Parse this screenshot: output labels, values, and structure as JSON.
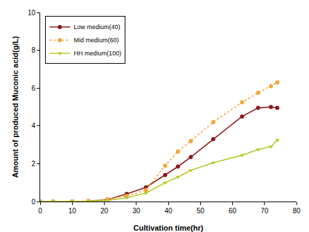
{
  "chart_data": {
    "type": "line",
    "x_label": "Cultivation time(hr)",
    "y_label": "Amount of produced Muconic acid(g/L)",
    "x": [
      0,
      4,
      10,
      15,
      21,
      27,
      33,
      39,
      43,
      47,
      54,
      63,
      68,
      72,
      74
    ],
    "series": [
      {
        "name": "Low medium(40)",
        "color": "#8b1a1a",
        "marker": "circle",
        "line_style": "solid",
        "values": [
          0,
          0,
          0,
          0.02,
          0.1,
          0.4,
          0.75,
          1.4,
          1.85,
          2.35,
          3.3,
          4.5,
          4.95,
          5.0,
          4.95
        ]
      },
      {
        "name": "Mid medium(60)",
        "color": "#f4a43a",
        "marker": "circle",
        "line_style": "dotted",
        "values": [
          0,
          0,
          0,
          0.02,
          0.12,
          0.3,
          0.6,
          1.9,
          2.65,
          3.2,
          4.2,
          5.25,
          5.75,
          6.1,
          6.3
        ]
      },
      {
        "name": "HH medium(100)",
        "color": "#b5c92e",
        "marker": "triangle-down",
        "line_style": "solid",
        "values": [
          0,
          0,
          0,
          0.02,
          0.05,
          0.2,
          0.45,
          1.0,
          1.3,
          1.65,
          2.05,
          2.45,
          2.75,
          2.9,
          3.25
        ]
      }
    ],
    "xlim": [
      0,
      80
    ],
    "xticks": [
      0,
      10,
      20,
      30,
      40,
      50,
      60,
      70,
      80
    ],
    "ylim": [
      0,
      10
    ],
    "yticks": [
      0,
      2,
      4,
      6,
      8,
      10
    ],
    "grid": false,
    "legend": "upper left"
  }
}
